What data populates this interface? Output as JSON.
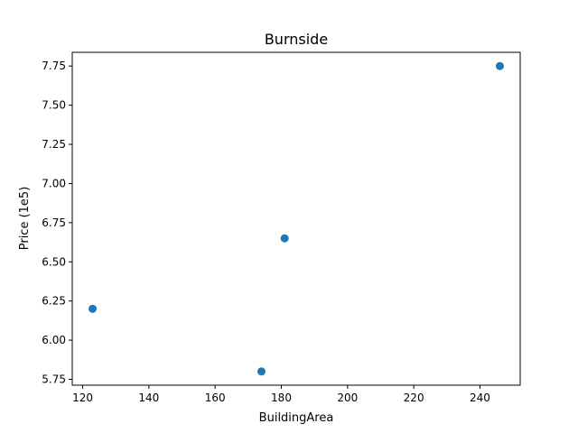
{
  "chart_data": {
    "type": "scatter",
    "title": "Burnside",
    "xlabel": "BuildingArea",
    "ylabel": "Price (1e5)",
    "xlim": [
      116.85,
      252.15
    ],
    "ylim": [
      5.7125,
      7.8375
    ],
    "xticks": [
      120,
      140,
      160,
      180,
      200,
      220,
      240
    ],
    "yticks": [
      5.75,
      6.0,
      6.25,
      6.5,
      6.75,
      7.0,
      7.25,
      7.5,
      7.75
    ],
    "xtick_labels": [
      "120",
      "140",
      "160",
      "180",
      "200",
      "220",
      "240"
    ],
    "ytick_labels": [
      "5.75",
      "6.00",
      "6.25",
      "6.50",
      "6.75",
      "7.00",
      "7.25",
      "7.50",
      "7.75"
    ],
    "grid": false,
    "series": [
      {
        "color": "#1f77b4",
        "points": [
          {
            "x": 123,
            "y": 6.2
          },
          {
            "x": 174,
            "y": 5.8
          },
          {
            "x": 181,
            "y": 6.65
          },
          {
            "x": 246,
            "y": 7.75
          }
        ]
      }
    ]
  }
}
